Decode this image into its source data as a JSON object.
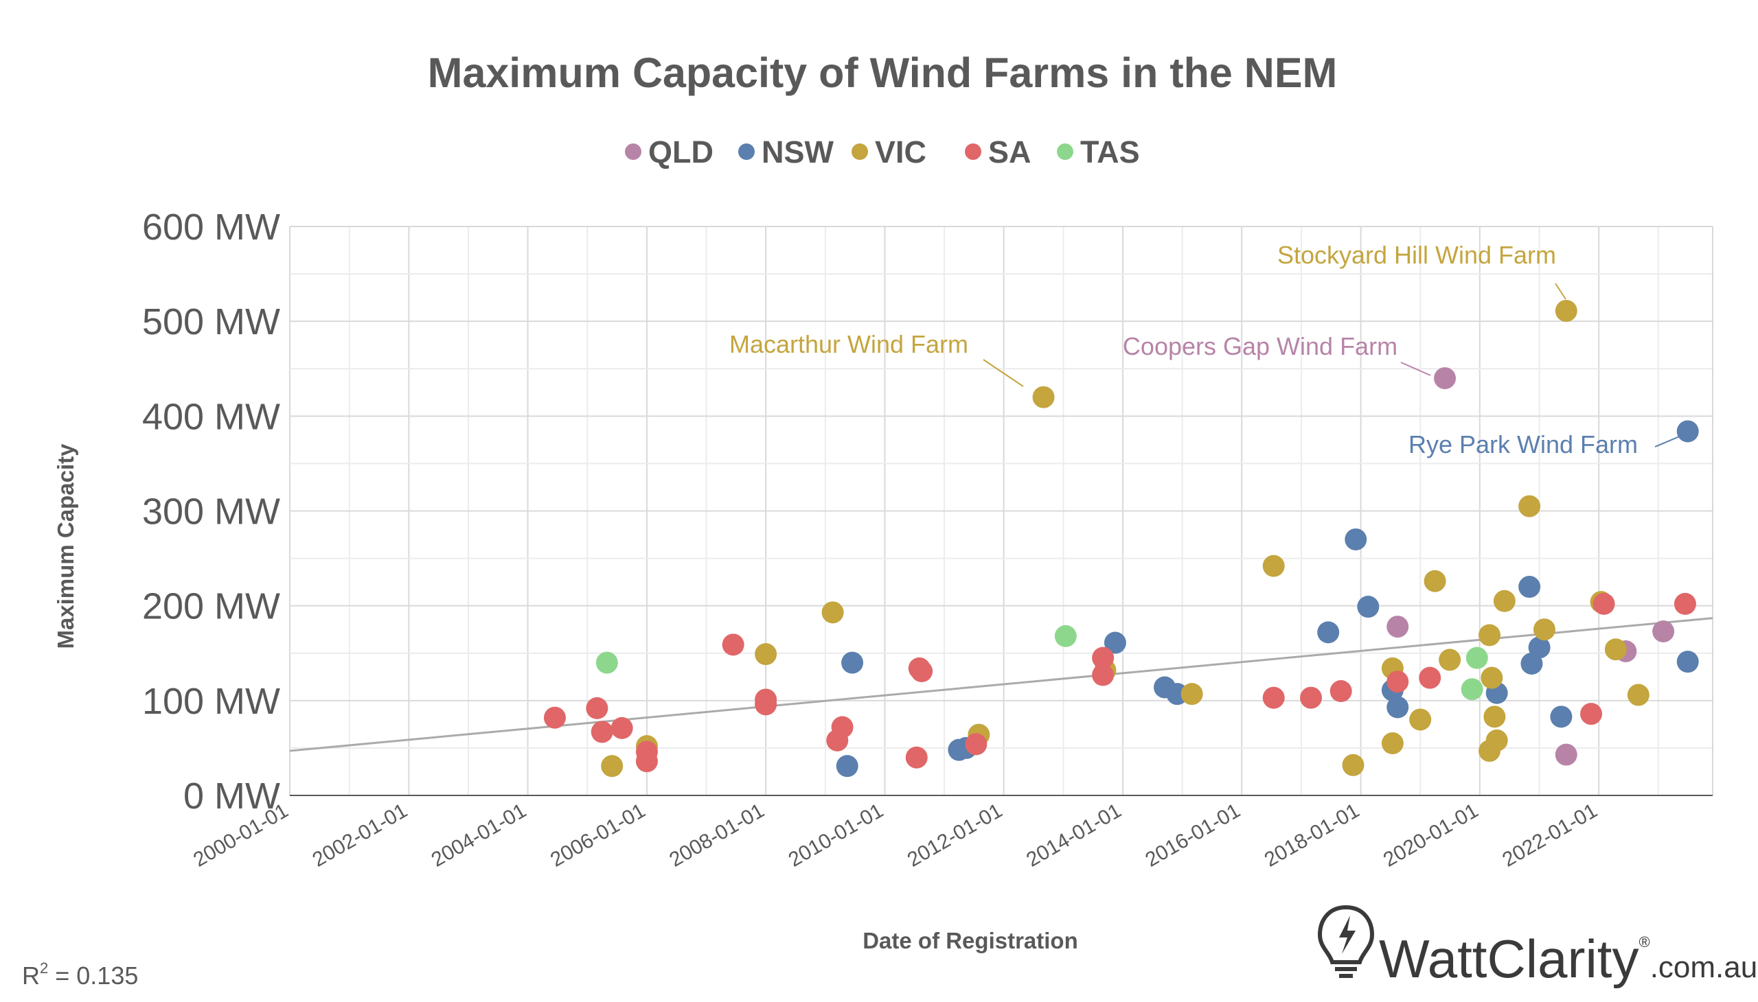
{
  "chart_data": {
    "type": "scatter",
    "title": "Maximum Capacity of Wind Farms in the NEM",
    "xlabel": "Date of Registration",
    "ylabel": "Maximum Capacity",
    "ylim": [
      0,
      600
    ],
    "yticks": [
      0,
      100,
      200,
      300,
      400,
      500,
      600
    ],
    "ytick_labels": [
      "0 MW",
      "100 MW",
      "200 MW",
      "300 MW",
      "400 MW",
      "500 MW",
      "600 MW"
    ],
    "xlim": [
      "2000-01-01",
      "2023-12-01"
    ],
    "xticks": [
      "2000-01-01",
      "2002-01-01",
      "2004-01-01",
      "2006-01-01",
      "2008-01-01",
      "2010-01-01",
      "2012-01-01",
      "2014-01-01",
      "2016-01-01",
      "2018-01-01",
      "2020-01-01",
      "2022-01-01"
    ],
    "grid": true,
    "legend_position": "top",
    "series": [
      {
        "name": "QLD",
        "color": "#b784a7",
        "points": [
          {
            "x": "2018-08-15",
            "y": 178
          },
          {
            "x": "2019-06-01",
            "y": 440
          },
          {
            "x": "2021-06-15",
            "y": 43
          },
          {
            "x": "2022-06-15",
            "y": 152
          },
          {
            "x": "2023-02-01",
            "y": 173
          }
        ]
      },
      {
        "name": "NSW",
        "color": "#5b7fae",
        "points": [
          {
            "x": "2009-06-15",
            "y": 140
          },
          {
            "x": "2009-05-15",
            "y": 31
          },
          {
            "x": "2011-04-01",
            "y": 48
          },
          {
            "x": "2011-05-15",
            "y": 50
          },
          {
            "x": "2013-11-15",
            "y": 161
          },
          {
            "x": "2014-09-15",
            "y": 114
          },
          {
            "x": "2014-12-01",
            "y": 107
          },
          {
            "x": "2017-06-15",
            "y": 172
          },
          {
            "x": "2017-12-01",
            "y": 270
          },
          {
            "x": "2018-02-15",
            "y": 199
          },
          {
            "x": "2018-07-15",
            "y": 111
          },
          {
            "x": "2018-08-15",
            "y": 93
          },
          {
            "x": "2020-04-15",
            "y": 108
          },
          {
            "x": "2020-11-01",
            "y": 220
          },
          {
            "x": "2020-11-15",
            "y": 139
          },
          {
            "x": "2021-01-01",
            "y": 156
          },
          {
            "x": "2021-05-15",
            "y": 83
          },
          {
            "x": "2023-07-01",
            "y": 384
          },
          {
            "x": "2023-07-01",
            "y": 141
          }
        ]
      },
      {
        "name": "VIC",
        "color": "#c4a53e",
        "points": [
          {
            "x": "2005-06-01",
            "y": 31
          },
          {
            "x": "2006-01-01",
            "y": 52
          },
          {
            "x": "2008-01-01",
            "y": 149
          },
          {
            "x": "2009-02-15",
            "y": 193
          },
          {
            "x": "2011-08-01",
            "y": 64
          },
          {
            "x": "2012-09-01",
            "y": 420
          },
          {
            "x": "2013-09-15",
            "y": 132
          },
          {
            "x": "2015-03-01",
            "y": 107
          },
          {
            "x": "2016-07-15",
            "y": 242
          },
          {
            "x": "2017-11-15",
            "y": 32
          },
          {
            "x": "2018-07-15",
            "y": 55
          },
          {
            "x": "2018-07-15",
            "y": 134
          },
          {
            "x": "2019-01-01",
            "y": 80
          },
          {
            "x": "2019-04-01",
            "y": 226
          },
          {
            "x": "2019-07-01",
            "y": 143
          },
          {
            "x": "2020-03-01",
            "y": 47
          },
          {
            "x": "2020-03-01",
            "y": 169
          },
          {
            "x": "2020-03-15",
            "y": 124
          },
          {
            "x": "2020-04-01",
            "y": 83
          },
          {
            "x": "2020-04-15",
            "y": 58
          },
          {
            "x": "2020-06-01",
            "y": 205
          },
          {
            "x": "2020-11-01",
            "y": 305
          },
          {
            "x": "2021-02-01",
            "y": 175
          },
          {
            "x": "2021-06-15",
            "y": 511
          },
          {
            "x": "2022-01-15",
            "y": 204
          },
          {
            "x": "2022-04-15",
            "y": 154
          },
          {
            "x": "2022-09-01",
            "y": 106
          }
        ]
      },
      {
        "name": "SA",
        "color": "#e06668",
        "points": [
          {
            "x": "2004-06-15",
            "y": 82
          },
          {
            "x": "2005-03-01",
            "y": 92
          },
          {
            "x": "2005-04-01",
            "y": 67
          },
          {
            "x": "2005-08-01",
            "y": 71
          },
          {
            "x": "2006-01-01",
            "y": 46
          },
          {
            "x": "2006-01-01",
            "y": 36
          },
          {
            "x": "2007-06-15",
            "y": 159
          },
          {
            "x": "2008-01-01",
            "y": 96
          },
          {
            "x": "2008-01-01",
            "y": 101
          },
          {
            "x": "2009-03-15",
            "y": 58
          },
          {
            "x": "2009-04-15",
            "y": 72
          },
          {
            "x": "2010-07-15",
            "y": 40
          },
          {
            "x": "2010-08-01",
            "y": 134
          },
          {
            "x": "2010-08-15",
            "y": 131
          },
          {
            "x": "2011-07-15",
            "y": 54
          },
          {
            "x": "2013-09-01",
            "y": 145
          },
          {
            "x": "2013-09-01",
            "y": 127
          },
          {
            "x": "2016-07-15",
            "y": 103
          },
          {
            "x": "2017-03-01",
            "y": 103
          },
          {
            "x": "2017-09-01",
            "y": 110
          },
          {
            "x": "2018-08-15",
            "y": 120
          },
          {
            "x": "2019-03-01",
            "y": 124
          },
          {
            "x": "2021-11-15",
            "y": 86
          },
          {
            "x": "2022-02-01",
            "y": 202
          },
          {
            "x": "2023-06-15",
            "y": 202
          }
        ]
      },
      {
        "name": "TAS",
        "color": "#8dd78d",
        "points": [
          {
            "x": "2005-05-01",
            "y": 140
          },
          {
            "x": "2013-01-15",
            "y": 168
          },
          {
            "x": "2019-11-15",
            "y": 112
          },
          {
            "x": "2019-12-15",
            "y": 145
          }
        ]
      }
    ],
    "trendline": {
      "from": {
        "x": "2000-01-01",
        "y": 47
      },
      "to": {
        "x": "2023-12-01",
        "y": 187
      },
      "color": "#aaaaaa"
    },
    "annotations": [
      {
        "text": "Macarthur Wind Farm",
        "series": "VIC",
        "x": "2012-09-01",
        "y": 420
      },
      {
        "text": "Coopers Gap Wind Farm",
        "series": "QLD",
        "x": "2019-06-01",
        "y": 440
      },
      {
        "text": "Stockyard Hill Wind Farm",
        "series": "VIC",
        "x": "2021-06-15",
        "y": 511
      },
      {
        "text": "Rye Park Wind Farm",
        "series": "NSW",
        "x": "2023-07-01",
        "y": 384
      }
    ],
    "r_squared_prefix": "R",
    "r_squared_sup": "2",
    "r_squared_value": " = 0.135"
  },
  "branding": {
    "name": "WattClarity",
    "registered": "®",
    "suffix": ".com.au",
    "icon": "lightbulb-bolt-icon"
  }
}
